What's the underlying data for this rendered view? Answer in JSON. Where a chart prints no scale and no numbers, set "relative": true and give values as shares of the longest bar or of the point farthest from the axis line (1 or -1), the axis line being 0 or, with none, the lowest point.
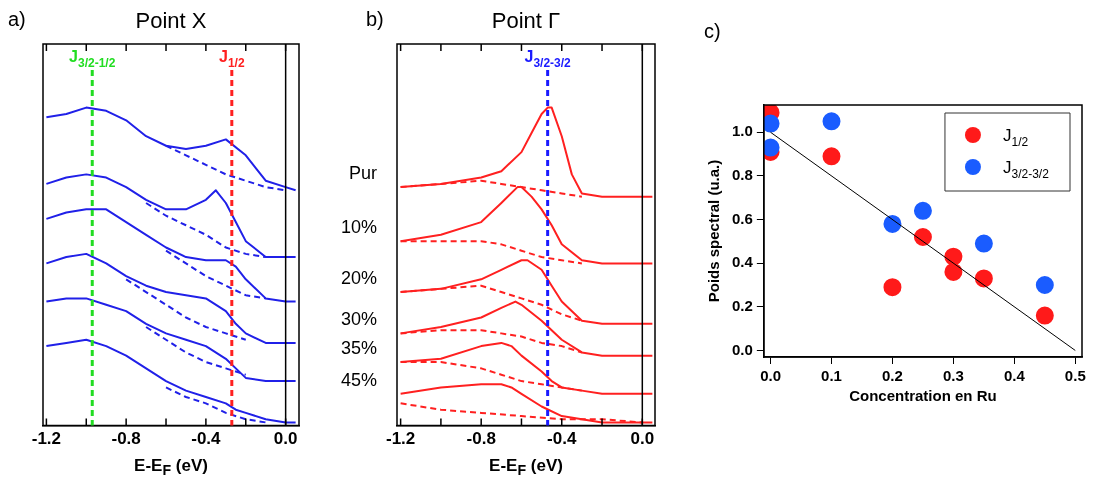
{
  "chart_data": [
    {
      "type": "line",
      "title": "Point X",
      "xlabel": "E-E$_{F}$ (eV)",
      "annotations": [
        "a)"
      ],
      "relative": true,
      "tick_labels": "x",
      "xlim": [
        -1.217,
        0.067
      ],
      "xticks": [
        {
          "value": -1.2,
          "label": "-1.2"
        },
        {
          "value": -1.0,
          "label": null
        },
        {
          "value": -0.8,
          "label": "-0.8"
        },
        {
          "value": -0.6,
          "label": null
        },
        {
          "value": -0.4,
          "label": "-0.4"
        },
        {
          "value": -0.2,
          "label": null
        },
        {
          "value": 0,
          "label": "0.0"
        }
      ],
      "ref_lines": [
        {
          "axis": "x",
          "value": -0.97,
          "label": "J$_{3/2-1/2}$",
          "color": "#22dd22",
          "line_style": "dashed"
        },
        {
          "axis": "x",
          "value": -0.27,
          "label": "J$_{1/2}$",
          "color": "#ff2020",
          "line_style": "dashed"
        },
        {
          "axis": "x",
          "value": 0,
          "color": "#000000",
          "line_style": "solid"
        }
      ],
      "series": [
        {
          "color": "#2020e8",
          "line_style": "solid",
          "x": [
            -1.2,
            -1.1,
            -1.0,
            -0.9,
            -0.8,
            -0.7,
            -0.6,
            -0.5,
            -0.4,
            -0.3,
            -0.2,
            -0.1,
            0,
            0.05
          ],
          "values": [
            0.97,
            0.98,
            1.0,
            0.99,
            0.96,
            0.91,
            0.88,
            0.87,
            0.88,
            0.9,
            0.85,
            0.77,
            0.75,
            0.74
          ]
        },
        {
          "color": "#2020e8",
          "line_style": "dashed",
          "x": [
            -0.6,
            -0.5,
            -0.4,
            -0.3,
            -0.2,
            -0.1,
            0
          ],
          "values": [
            0.88,
            0.85,
            0.82,
            0.79,
            0.77,
            0.75,
            0.74
          ]
        },
        {
          "color": "#2020e8",
          "line_style": "solid",
          "x": [
            -1.2,
            -1.1,
            -1.0,
            -0.9,
            -0.8,
            -0.7,
            -0.6,
            -0.5,
            -0.4,
            -0.35,
            -0.3,
            -0.25,
            -0.2,
            -0.1,
            0,
            0.05
          ],
          "values": [
            0.76,
            0.78,
            0.79,
            0.78,
            0.75,
            0.71,
            0.68,
            0.68,
            0.71,
            0.74,
            0.7,
            0.64,
            0.58,
            0.53,
            0.53,
            0.53
          ]
        },
        {
          "color": "#2020e8",
          "line_style": "dashed",
          "x": [
            -0.7,
            -0.6,
            -0.5,
            -0.4,
            -0.3,
            -0.2,
            -0.1
          ],
          "values": [
            0.7,
            0.66,
            0.63,
            0.6,
            0.56,
            0.54,
            0.53
          ]
        },
        {
          "color": "#2020e8",
          "line_style": "solid",
          "x": [
            -1.2,
            -1.1,
            -1.0,
            -0.9,
            -0.8,
            -0.7,
            -0.6,
            -0.5,
            -0.4,
            -0.3,
            -0.25,
            -0.2,
            -0.1,
            0,
            0.05
          ],
          "values": [
            0.65,
            0.67,
            0.68,
            0.68,
            0.64,
            0.6,
            0.56,
            0.53,
            0.52,
            0.52,
            0.5,
            0.46,
            0.4,
            0.39,
            0.39
          ]
        },
        {
          "color": "#2020e8",
          "line_style": "dashed",
          "x": [
            -0.6,
            -0.5,
            -0.4,
            -0.3,
            -0.2,
            -0.1
          ],
          "values": [
            0.55,
            0.51,
            0.47,
            0.44,
            0.41,
            0.4
          ]
        },
        {
          "color": "#2020e8",
          "line_style": "solid",
          "x": [
            -1.2,
            -1.1,
            -1.0,
            -0.9,
            -0.8,
            -0.7,
            -0.6,
            -0.5,
            -0.4,
            -0.3,
            -0.25,
            -0.2,
            -0.1,
            0,
            0.05
          ],
          "values": [
            0.51,
            0.53,
            0.54,
            0.51,
            0.47,
            0.44,
            0.42,
            0.41,
            0.4,
            0.36,
            0.32,
            0.29,
            0.26,
            0.26,
            0.26
          ]
        },
        {
          "color": "#2020e8",
          "line_style": "dashed",
          "x": [
            -0.8,
            -0.7,
            -0.6,
            -0.5,
            -0.4,
            -0.3,
            -0.2
          ],
          "values": [
            0.46,
            0.42,
            0.38,
            0.34,
            0.31,
            0.29,
            0.27
          ]
        },
        {
          "color": "#2020e8",
          "line_style": "solid",
          "x": [
            -1.2,
            -1.1,
            -1.0,
            -0.9,
            -0.8,
            -0.7,
            -0.6,
            -0.5,
            -0.4,
            -0.3,
            -0.25,
            -0.2,
            -0.1,
            0,
            0.05
          ],
          "values": [
            0.39,
            0.4,
            0.4,
            0.38,
            0.36,
            0.32,
            0.29,
            0.27,
            0.25,
            0.21,
            0.18,
            0.15,
            0.14,
            0.14,
            0.14
          ]
        },
        {
          "color": "#2020e8",
          "line_style": "dashed",
          "x": [
            -0.7,
            -0.6,
            -0.5,
            -0.4,
            -0.3,
            -0.2
          ],
          "values": [
            0.31,
            0.27,
            0.23,
            0.2,
            0.18,
            0.16
          ]
        },
        {
          "color": "#2020e8",
          "line_style": "solid",
          "x": [
            -1.2,
            -1.1,
            -1.0,
            -0.9,
            -0.8,
            -0.7,
            -0.6,
            -0.5,
            -0.4,
            -0.3,
            -0.25,
            -0.2,
            -0.1,
            0,
            0.05
          ],
          "values": [
            0.25,
            0.26,
            0.27,
            0.25,
            0.22,
            0.18,
            0.14,
            0.11,
            0.09,
            0.07,
            0.05,
            0.04,
            0.02,
            0.01,
            0.01
          ]
        },
        {
          "color": "#2020e8",
          "line_style": "dashed",
          "x": [
            -0.6,
            -0.5,
            -0.4,
            -0.3,
            -0.2,
            -0.1
          ],
          "values": [
            0.12,
            0.09,
            0.07,
            0.04,
            0.02,
            0.01
          ]
        }
      ]
    },
    {
      "type": "line",
      "title": "Point Γ",
      "xlabel": "E-E$_{F}$ (eV)",
      "annotations": [
        "b)"
      ],
      "relative": true,
      "tick_labels": "x",
      "xlim": [
        -1.218,
        0.063
      ],
      "xticks": [
        {
          "value": -1.2,
          "label": "-1.2"
        },
        {
          "value": -1.0,
          "label": null
        },
        {
          "value": -0.8,
          "label": "-0.8"
        },
        {
          "value": -0.6,
          "label": null
        },
        {
          "value": -0.4,
          "label": "-0.4"
        },
        {
          "value": -0.2,
          "label": null
        },
        {
          "value": 0,
          "label": "0.0"
        }
      ],
      "ref_lines": [
        {
          "axis": "x",
          "value": -0.47,
          "label": "J$_{3/2-3/2}$",
          "color": "#1a1aff",
          "line_style": "dashed"
        },
        {
          "axis": "x",
          "value": 0,
          "color": "#000000",
          "line_style": "solid"
        }
      ],
      "series": [
        {
          "name": "Pur",
          "color": "#ff2020",
          "line_style": "solid",
          "x": [
            -1.2,
            -1.0,
            -0.8,
            -0.7,
            -0.6,
            -0.55,
            -0.5,
            -0.47,
            -0.45,
            -0.4,
            -0.35,
            -0.3,
            -0.2,
            0,
            0.05
          ],
          "values": [
            0.75,
            0.76,
            0.78,
            0.8,
            0.86,
            0.92,
            0.98,
            1.0,
            1.0,
            0.91,
            0.79,
            0.73,
            0.72,
            0.72,
            0.72
          ]
        },
        {
          "color": "#ff2020",
          "line_style": "dashed",
          "x": [
            -1.2,
            -1.0,
            -0.8,
            -0.7,
            -0.6,
            -0.5,
            -0.4,
            -0.3
          ],
          "values": [
            0.75,
            0.76,
            0.77,
            0.76,
            0.75,
            0.74,
            0.73,
            0.72
          ]
        },
        {
          "name": "10%",
          "color": "#ff2020",
          "line_style": "solid",
          "x": [
            -1.2,
            -1.0,
            -0.8,
            -0.7,
            -0.62,
            -0.6,
            -0.55,
            -0.5,
            -0.45,
            -0.4,
            -0.3,
            -0.2,
            0,
            0.05
          ],
          "values": [
            0.58,
            0.6,
            0.64,
            0.7,
            0.75,
            0.75,
            0.72,
            0.68,
            0.63,
            0.57,
            0.52,
            0.51,
            0.51,
            0.51
          ]
        },
        {
          "color": "#ff2020",
          "line_style": "dashed",
          "x": [
            -1.2,
            -1.0,
            -0.8,
            -0.7,
            -0.6,
            -0.5,
            -0.4,
            -0.3
          ],
          "values": [
            0.58,
            0.58,
            0.58,
            0.57,
            0.55,
            0.53,
            0.52,
            0.51
          ]
        },
        {
          "name": "20%",
          "color": "#ff2020",
          "line_style": "solid",
          "x": [
            -1.2,
            -1.0,
            -0.8,
            -0.7,
            -0.6,
            -0.57,
            -0.5,
            -0.45,
            -0.4,
            -0.3,
            -0.2,
            0,
            0.05
          ],
          "values": [
            0.42,
            0.43,
            0.46,
            0.49,
            0.52,
            0.52,
            0.49,
            0.44,
            0.39,
            0.33,
            0.32,
            0.32,
            0.32
          ]
        },
        {
          "color": "#ff2020",
          "line_style": "dashed",
          "x": [
            -1.2,
            -1.0,
            -0.8,
            -0.7,
            -0.6,
            -0.5,
            -0.4,
            -0.3
          ],
          "values": [
            0.42,
            0.43,
            0.44,
            0.42,
            0.4,
            0.38,
            0.35,
            0.33
          ]
        },
        {
          "name": "30%",
          "color": "#ff2020",
          "line_style": "solid",
          "x": [
            -1.2,
            -1.0,
            -0.8,
            -0.7,
            -0.63,
            -0.6,
            -0.5,
            -0.4,
            -0.3,
            -0.2,
            0,
            0.05
          ],
          "values": [
            0.29,
            0.31,
            0.34,
            0.37,
            0.39,
            0.38,
            0.33,
            0.27,
            0.23,
            0.22,
            0.22,
            0.22
          ]
        },
        {
          "color": "#ff2020",
          "line_style": "dashed",
          "x": [
            -1.2,
            -1.0,
            -0.8,
            -0.7,
            -0.6,
            -0.5,
            -0.4,
            -0.3
          ],
          "values": [
            0.29,
            0.3,
            0.3,
            0.29,
            0.28,
            0.26,
            0.25,
            0.23
          ]
        },
        {
          "name": "35%",
          "color": "#ff2020",
          "line_style": "solid",
          "x": [
            -1.2,
            -1.0,
            -0.8,
            -0.7,
            -0.65,
            -0.6,
            -0.5,
            -0.45,
            -0.4,
            -0.3,
            -0.2,
            0,
            0.05
          ],
          "values": [
            0.2,
            0.21,
            0.25,
            0.26,
            0.25,
            0.22,
            0.17,
            0.14,
            0.12,
            0.11,
            0.1,
            0.1,
            0.1
          ]
        },
        {
          "color": "#ff2020",
          "line_style": "dashed",
          "x": [
            -1.2,
            -1.0,
            -0.8,
            -0.7,
            -0.6,
            -0.5,
            -0.4,
            -0.3
          ],
          "values": [
            0.2,
            0.2,
            0.18,
            0.16,
            0.14,
            0.13,
            0.12,
            0.11
          ]
        },
        {
          "name": "45%",
          "color": "#ff2020",
          "line_style": "solid",
          "x": [
            -1.2,
            -1.0,
            -0.8,
            -0.7,
            -0.65,
            -0.6,
            -0.5,
            -0.4,
            -0.3,
            -0.2,
            0,
            0.05
          ],
          "values": [
            0.1,
            0.12,
            0.13,
            0.13,
            0.12,
            0.1,
            0.06,
            0.03,
            0.02,
            0.01,
            0.01,
            0.01
          ]
        },
        {
          "color": "#ff2020",
          "line_style": "dashed",
          "x": [
            -1.2,
            -1.0,
            -0.8,
            -0.6,
            -0.4,
            -0.2,
            0
          ],
          "values": [
            0.07,
            0.05,
            0.04,
            0.03,
            0.02,
            0.02,
            0.01
          ]
        }
      ]
    },
    {
      "type": "scatter",
      "xlabel": "Concentration en Ru",
      "ylabel": "Poids spectral (u.a.)",
      "annotations": [
        "c)"
      ],
      "marker": "circle",
      "legend": "top right",
      "xlim": [
        -0.011,
        0.511
      ],
      "ylim": [
        -0.03,
        1.125
      ],
      "xticks": [
        {
          "value": 0,
          "label": "0.0"
        },
        {
          "value": 0.1,
          "label": "0.1"
        },
        {
          "value": 0.2,
          "label": "0.2"
        },
        {
          "value": 0.3,
          "label": "0.3"
        },
        {
          "value": 0.4,
          "label": "0.4"
        },
        {
          "value": 0.5,
          "label": "0.5"
        }
      ],
      "yticks": [
        {
          "value": 0,
          "label": "0.0"
        },
        {
          "value": 0.2,
          "label": "0.2"
        },
        {
          "value": 0.4,
          "label": "0.4"
        },
        {
          "value": 0.6,
          "label": "0.6"
        },
        {
          "value": 0.8,
          "label": "0.8"
        },
        {
          "value": 1.0,
          "label": "1.0"
        }
      ],
      "series": [
        {
          "name": "J$_{1/2}$",
          "color": "#ff1a1a",
          "x": [
            0,
            0,
            0.1,
            0.2,
            0.25,
            0.3,
            0.3,
            0.35,
            0.45
          ],
          "values": [
            1.09,
            0.91,
            0.89,
            0.29,
            0.52,
            0.43,
            0.36,
            0.33,
            0.16
          ]
        },
        {
          "name": "J$_{3/2-3/2}$",
          "color": "#1a5cff",
          "x": [
            0,
            0,
            0.1,
            0.2,
            0.25,
            0.35,
            0.45
          ],
          "values": [
            1.04,
            0.93,
            1.05,
            0.58,
            0.64,
            0.49,
            0.3
          ]
        },
        {
          "type": "line",
          "color": "#000000",
          "marker": "none",
          "line_style": "solid",
          "x": [
            0,
            0.5
          ],
          "values": [
            1.0,
            0.0
          ]
        }
      ]
    }
  ]
}
